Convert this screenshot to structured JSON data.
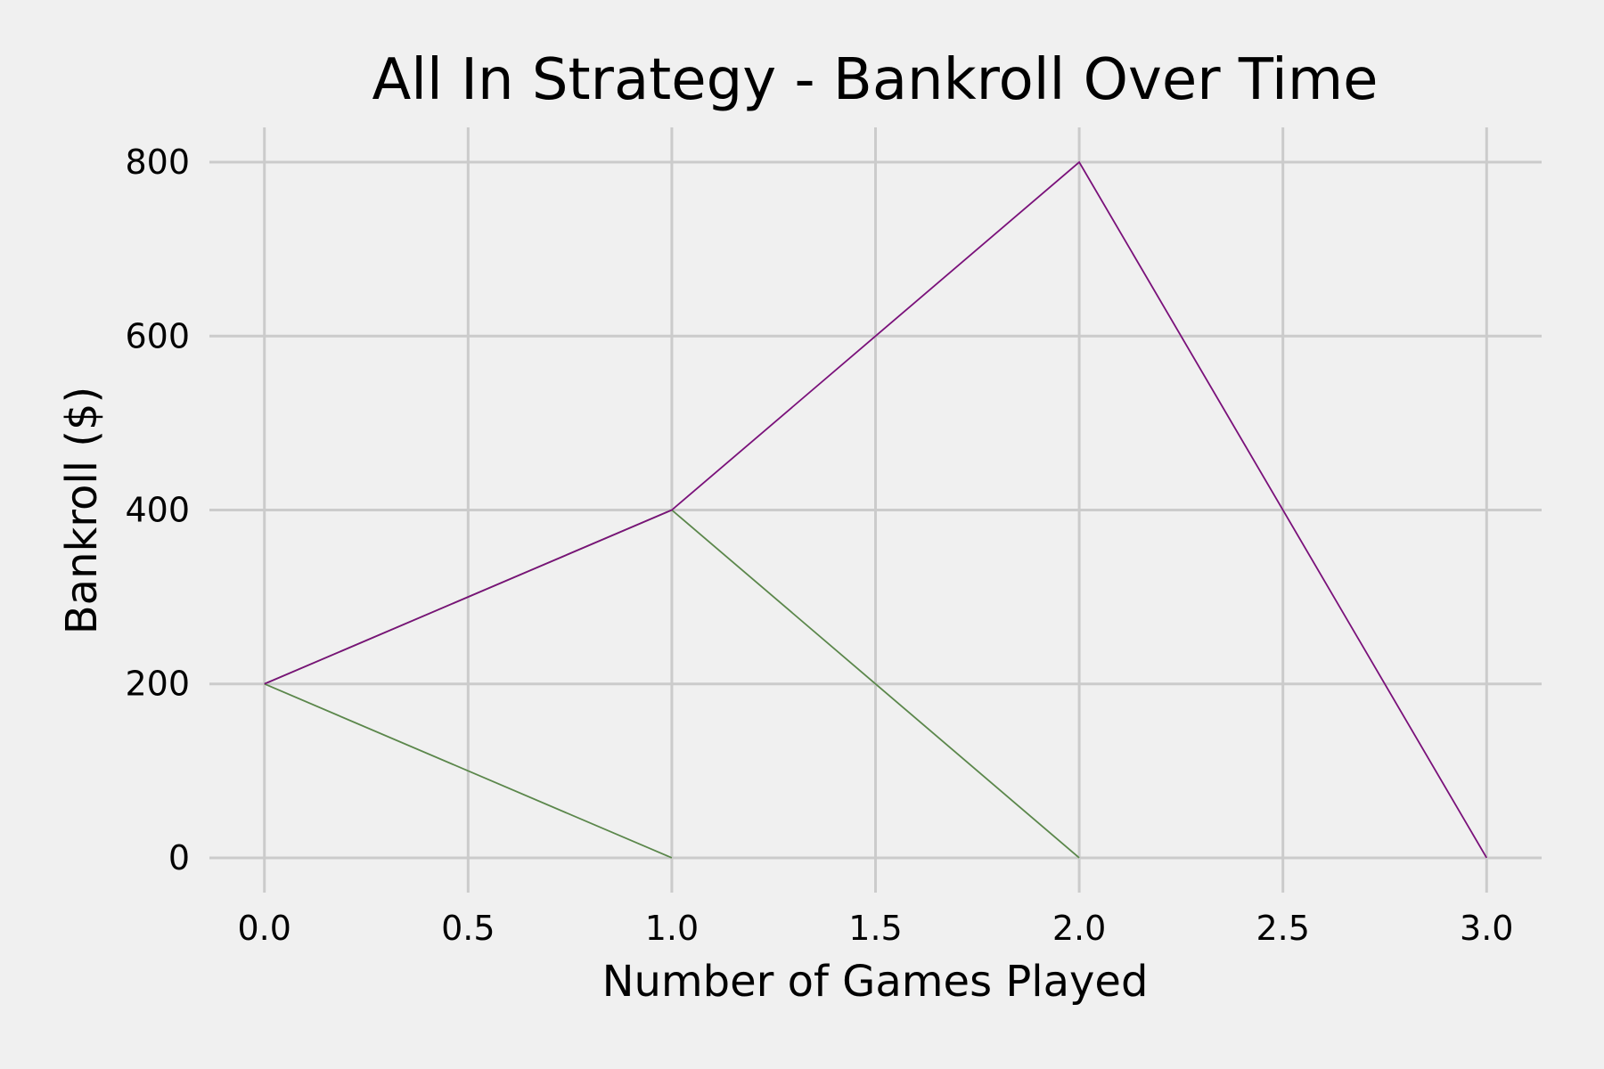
{
  "chart_data": {
    "type": "line",
    "title": "All In Strategy - Bankroll Over Time",
    "xlabel": "Number of Games Played",
    "ylabel": "Bankroll ($)",
    "xlim": [
      -0.135,
      3.135
    ],
    "ylim": [
      -40,
      840
    ],
    "xticks": [
      0,
      0.5,
      1,
      1.5,
      2,
      2.5,
      3
    ],
    "xtick_labels": [
      "0.0",
      "0.5",
      "1.0",
      "1.5",
      "2.0",
      "2.5",
      "3.0"
    ],
    "yticks": [
      0,
      200,
      400,
      600,
      800
    ],
    "ytick_labels": [
      "0",
      "200",
      "400",
      "600",
      "800"
    ],
    "grid": true,
    "legend": false,
    "series": [
      {
        "x": [
          0,
          1
        ],
        "y": [
          200,
          0
        ],
        "color": "#5b874b"
      },
      {
        "x": [
          0,
          1,
          2
        ],
        "y": [
          200,
          400,
          0
        ],
        "color": "#5b874b"
      },
      {
        "x": [
          0,
          1,
          2,
          3
        ],
        "y": [
          200,
          400,
          800,
          0
        ],
        "color": "#7a117a"
      }
    ]
  }
}
